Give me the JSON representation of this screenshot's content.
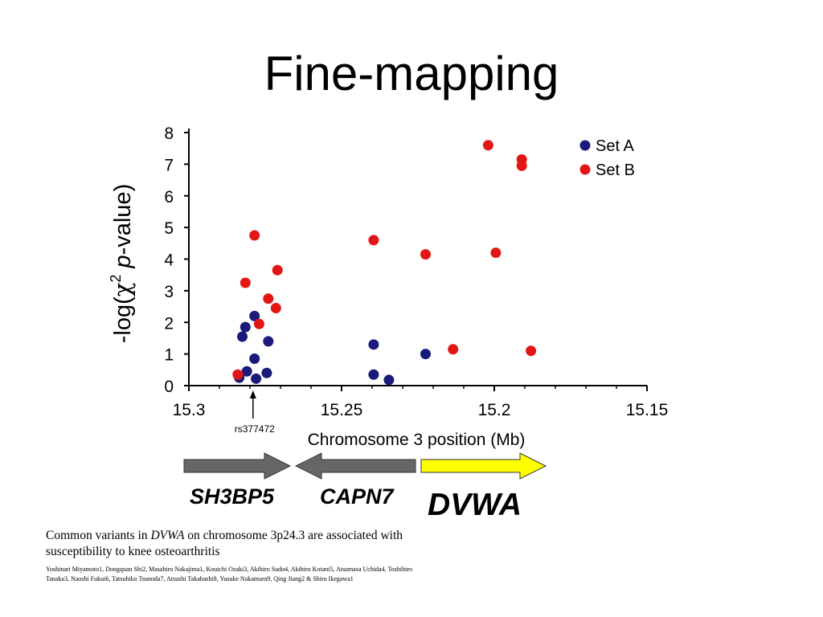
{
  "title": "Fine-mapping",
  "chart_data": {
    "type": "scatter",
    "title": "",
    "xlabel": "Chromosome 3 position (Mb)",
    "ylabel_parts": [
      "-log(",
      "χ",
      "2",
      " ",
      "p",
      "-value)"
    ],
    "xlim": [
      15.3,
      15.15
    ],
    "x_reversed": true,
    "ylim": [
      0,
      8
    ],
    "x_ticks": [
      "15.3",
      "15.25",
      "15.2",
      "15.15"
    ],
    "y_ticks": [
      "0",
      "1",
      "2",
      "3",
      "4",
      "5",
      "6",
      "7",
      "8"
    ],
    "grid": false,
    "legend_position": "top-right",
    "annotation": {
      "label": "rs377472",
      "x": 15.279
    },
    "series": [
      {
        "name": "Set A",
        "color": "#1a1a7a",
        "points": [
          [
            15.2835,
            0.25
          ],
          [
            15.2825,
            1.55
          ],
          [
            15.2815,
            1.85
          ],
          [
            15.281,
            0.45
          ],
          [
            15.2785,
            0.85
          ],
          [
            15.2785,
            2.2
          ],
          [
            15.278,
            0.22
          ],
          [
            15.2745,
            0.4
          ],
          [
            15.274,
            1.4
          ],
          [
            15.2395,
            1.3
          ],
          [
            15.2395,
            0.35
          ],
          [
            15.2345,
            0.18
          ],
          [
            15.2225,
            1.0
          ]
        ]
      },
      {
        "name": "Set B",
        "color": "#e31616",
        "points": [
          [
            15.284,
            0.35
          ],
          [
            15.2815,
            3.25
          ],
          [
            15.2785,
            4.75
          ],
          [
            15.277,
            1.95
          ],
          [
            15.274,
            2.75
          ],
          [
            15.2715,
            2.45
          ],
          [
            15.271,
            3.65
          ],
          [
            15.2395,
            4.6
          ],
          [
            15.2225,
            4.15
          ],
          [
            15.2135,
            1.15
          ],
          [
            15.202,
            7.6
          ],
          [
            15.1995,
            4.2
          ],
          [
            15.191,
            6.95
          ],
          [
            15.191,
            7.15
          ],
          [
            15.188,
            1.1
          ]
        ]
      }
    ]
  },
  "genes": [
    {
      "name": "SH3BP5",
      "direction": "right",
      "color": "#666666"
    },
    {
      "name": "CAPN7",
      "direction": "left",
      "color": "#666666"
    },
    {
      "name": "DVWA",
      "direction": "right",
      "color": "#ffff00"
    }
  ],
  "citation": {
    "title_parts": [
      "Common variants in ",
      "DVWA",
      " on chromosome 3p24.3 are associated with susceptibility to knee osteoarthritis"
    ],
    "authors": "Yoshinari Miyamoto1, Dongquan Shi2, Masahiro Nakajima1, Kouichi Ozaki3, Akihiro Sudo4, Akihiro Kotani5, Atsumasa Uchida4, Toshihiro Tanaka3, Naoshi Fukui6, Tatsuhiko Tsunoda7, Atsushi Takahashi8, Yusuke Nakamura9, Qing Jiang2 & Shiro Ikegawa1"
  }
}
